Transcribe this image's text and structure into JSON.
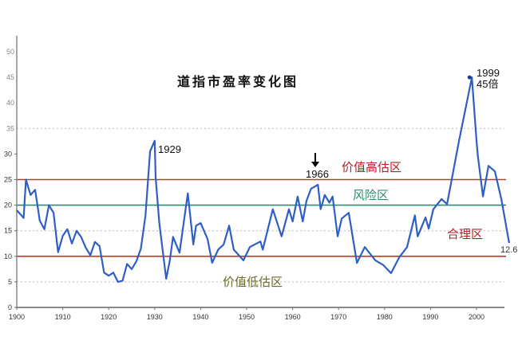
{
  "chart_data": {
    "type": "line",
    "title": "道指市盈率变化图",
    "xlabel": "",
    "ylabel": "",
    "xlim": [
      1900,
      2008
    ],
    "ylim": [
      0,
      50
    ],
    "x_ticks": [
      1900,
      1910,
      1920,
      1930,
      1940,
      1950,
      1960,
      1970,
      1980,
      1990,
      2000
    ],
    "y_ticks": [
      0,
      5,
      10,
      15,
      20,
      25,
      30
    ],
    "y_ticks_faint": [
      35,
      40,
      45,
      50
    ],
    "grid": "dashed at 5, 15, 35",
    "line_color": "#2f5fc4",
    "series": [
      {
        "x": [
          1900,
          1901,
          1901.5,
          1902,
          1903,
          1904,
          1905,
          1906,
          1907,
          1908,
          1909,
          1910,
          1911,
          1912,
          1913,
          1914,
          1915,
          1916,
          1917,
          1918,
          1919,
          1920,
          1921,
          1922,
          1923,
          1924,
          1925,
          1926,
          1927,
          1928,
          1929,
          1930,
          1930.2,
          1931,
          1932.5,
          1933.3,
          1934,
          1935.4,
          1937.2,
          1938.4,
          1939,
          1940,
          1941.5,
          1942.5,
          1943.8,
          1945,
          1946.2,
          1947.2,
          1949.3,
          1950.7,
          1953,
          1953.5,
          1955.7,
          1957.6,
          1959.2,
          1960,
          1961.1,
          1962.2,
          1963,
          1964,
          1965.5,
          1966.1,
          1967,
          1968,
          1968.7,
          1969.8,
          1970.7,
          1972.2,
          1974,
          1975.7,
          1978,
          1979.7,
          1981.4,
          1983.2,
          1984.9,
          1986.6,
          1987.2,
          1988.9,
          1989.6,
          1990.6,
          1992.4,
          1993.6,
          1994.8,
          1996.2,
          1999,
          2000,
          2000.3,
          2001.4,
          2002.6,
          2004,
          2005.4,
          2007.1
        ],
        "y": [
          19,
          18,
          17.5,
          25,
          22,
          23,
          17,
          15.3,
          20,
          18.5,
          10.8,
          14,
          15.3,
          12.5,
          15,
          13.8,
          11.7,
          10.2,
          12.8,
          12,
          6.8,
          6.2,
          6.8,
          5,
          5.2,
          8.5,
          7.5,
          9,
          11.5,
          18,
          30.5,
          32.6,
          25.4,
          16.5,
          5.6,
          9.2,
          13.8,
          10.7,
          22.3,
          12.3,
          16,
          16.5,
          13.4,
          8.7,
          11.3,
          12.3,
          16,
          11.3,
          9.2,
          11.8,
          12.9,
          11.3,
          19.2,
          13.9,
          19.2,
          16.8,
          21.7,
          16.8,
          20.8,
          23.2,
          24,
          19.2,
          22,
          20.5,
          21.7,
          13.9,
          17.4,
          18.5,
          8.7,
          11.8,
          9.2,
          8.3,
          6.7,
          9.8,
          11.8,
          18,
          13.9,
          17.6,
          15.4,
          19.2,
          21.2,
          20.2,
          25.9,
          32.6,
          45,
          32.6,
          29.6,
          21.7,
          27.7,
          26.6,
          21.2,
          12.6
        ]
      }
    ],
    "reference_lines": [
      {
        "y": 25,
        "color": "#c0392b"
      },
      {
        "y": 20,
        "color": "#2e8b6e"
      },
      {
        "y": 10,
        "color": "#c0392b"
      }
    ],
    "zone_labels": [
      {
        "text": "价值高估区",
        "color": "#b22222"
      },
      {
        "text": "风险区",
        "color": "#2e8b6e"
      },
      {
        "text": "合理区",
        "color": "#b22222"
      },
      {
        "text": "价值低估区",
        "color": "#6b6b2a"
      }
    ],
    "annotations": [
      {
        "text": "1929"
      },
      {
        "text": "1966"
      },
      {
        "text": "1999"
      },
      {
        "text": "45倍"
      },
      {
        "text": "12.6",
        "color": "#2f6fb0"
      }
    ]
  }
}
